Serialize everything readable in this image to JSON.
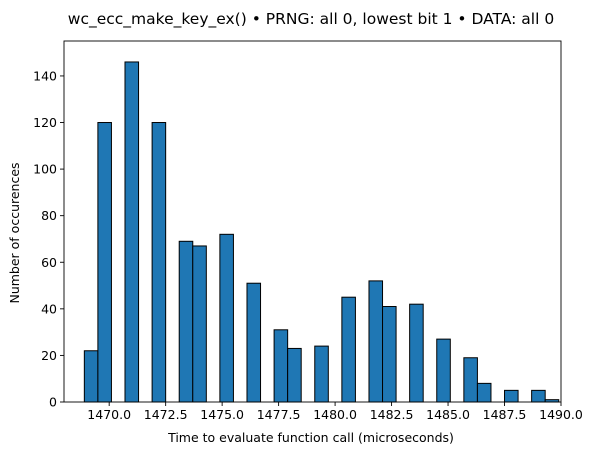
{
  "chart_data": {
    "type": "bar",
    "title": "wc_ecc_make_key_ex() • PRNG: all 0, lowest bit 1 • DATA: all 0",
    "xlabel": "Time to evaluate function call (microseconds)",
    "ylabel": "Number of occurences",
    "xlim": [
      1468.0,
      1490.0
    ],
    "ylim": [
      0,
      155
    ],
    "xticks": [
      1470.0,
      1472.5,
      1475.0,
      1477.5,
      1480.0,
      1482.5,
      1485.0,
      1487.5,
      1490.0
    ],
    "xtick_labels": [
      "1470.0",
      "1472.5",
      "1475.0",
      "1477.5",
      "1480.0",
      "1482.5",
      "1485.0",
      "1487.5",
      "1490.0"
    ],
    "yticks": [
      0,
      20,
      40,
      60,
      80,
      100,
      120,
      140
    ],
    "ytick_labels": [
      "0",
      "20",
      "40",
      "60",
      "80",
      "100",
      "120",
      "140"
    ],
    "bins": [
      {
        "x0": 1468.9,
        "x1": 1469.5,
        "value": 22
      },
      {
        "x0": 1469.5,
        "x1": 1470.1,
        "value": 120
      },
      {
        "x0": 1470.7,
        "x1": 1471.3,
        "value": 146
      },
      {
        "x0": 1471.9,
        "x1": 1472.5,
        "value": 120
      },
      {
        "x0": 1473.1,
        "x1": 1473.7,
        "value": 69
      },
      {
        "x0": 1473.7,
        "x1": 1474.3,
        "value": 67
      },
      {
        "x0": 1474.9,
        "x1": 1475.5,
        "value": 72
      },
      {
        "x0": 1476.1,
        "x1": 1476.7,
        "value": 51
      },
      {
        "x0": 1477.3,
        "x1": 1477.9,
        "value": 31
      },
      {
        "x0": 1477.9,
        "x1": 1478.5,
        "value": 23
      },
      {
        "x0": 1479.1,
        "x1": 1479.7,
        "value": 24
      },
      {
        "x0": 1480.3,
        "x1": 1480.9,
        "value": 45
      },
      {
        "x0": 1481.5,
        "x1": 1482.1,
        "value": 52
      },
      {
        "x0": 1482.1,
        "x1": 1482.7,
        "value": 41
      },
      {
        "x0": 1483.3,
        "x1": 1483.9,
        "value": 42
      },
      {
        "x0": 1484.5,
        "x1": 1485.1,
        "value": 27
      },
      {
        "x0": 1485.7,
        "x1": 1486.3,
        "value": 19
      },
      {
        "x0": 1486.3,
        "x1": 1486.9,
        "value": 8
      },
      {
        "x0": 1487.5,
        "x1": 1488.1,
        "value": 5
      },
      {
        "x0": 1488.7,
        "x1": 1489.3,
        "value": 5
      },
      {
        "x0": 1489.3,
        "x1": 1489.9,
        "value": 1
      }
    ],
    "colors": {
      "bar_fill": "#1f77b4",
      "bar_edge": "#000000",
      "background": "#ffffff"
    },
    "grid": false,
    "legend": "none"
  }
}
